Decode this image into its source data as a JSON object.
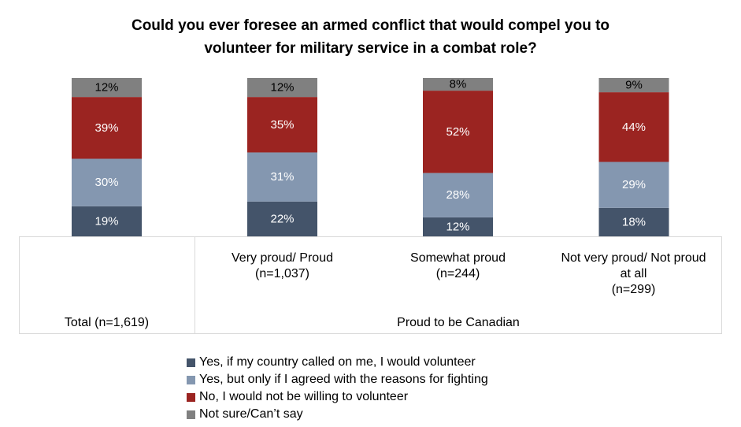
{
  "title_lines": [
    "Could you ever foresee an armed conflict that would compel you to",
    "volunteer for military service in a combat role?"
  ],
  "chart_data": {
    "type": "bar",
    "stacked": true,
    "percent_scale": true,
    "title": "Could you ever foresee an armed conflict that would compel you to volunteer for military service in a combat role?",
    "categories": [
      "Total (n=1,619)",
      "Very proud/ Proud (n=1,037)",
      "Somewhat proud (n=244)",
      "Not very proud/ Not proud at all (n=299)"
    ],
    "category_label_lines": [
      [],
      [
        "Very proud/ Proud",
        "(n=1,037)"
      ],
      [
        "Somewhat proud",
        "(n=244)"
      ],
      [
        "Not very proud/ Not proud",
        "at all",
        "(n=299)"
      ]
    ],
    "group_labels": [
      "Total (n=1,619)",
      "Proud to be Canadian"
    ],
    "series": [
      {
        "name": "Yes, if my country called on me, I would volunteer",
        "color": "#44546a",
        "values": [
          19,
          22,
          12,
          18
        ],
        "labels": [
          "19%",
          "22%",
          "12%",
          "18%"
        ]
      },
      {
        "name": "Yes, but only if I agreed with the reasons for fighting",
        "color": "#8497b0",
        "values": [
          30,
          31,
          28,
          29
        ],
        "labels": [
          "30%",
          "31%",
          "28%",
          "29%"
        ]
      },
      {
        "name": "No, I would not be willing to volunteer",
        "color": "#9b2421",
        "values": [
          39,
          35,
          52,
          44
        ],
        "labels": [
          "39%",
          "35%",
          "52%",
          "44%"
        ]
      },
      {
        "name": "Not sure/Can’t say",
        "color": "#808080",
        "values": [
          12,
          12,
          8,
          9
        ],
        "labels": [
          "12%",
          "12%",
          "8%",
          "9%"
        ]
      }
    ],
    "xlabel": "",
    "ylabel": "",
    "legend_position": "bottom-center"
  }
}
